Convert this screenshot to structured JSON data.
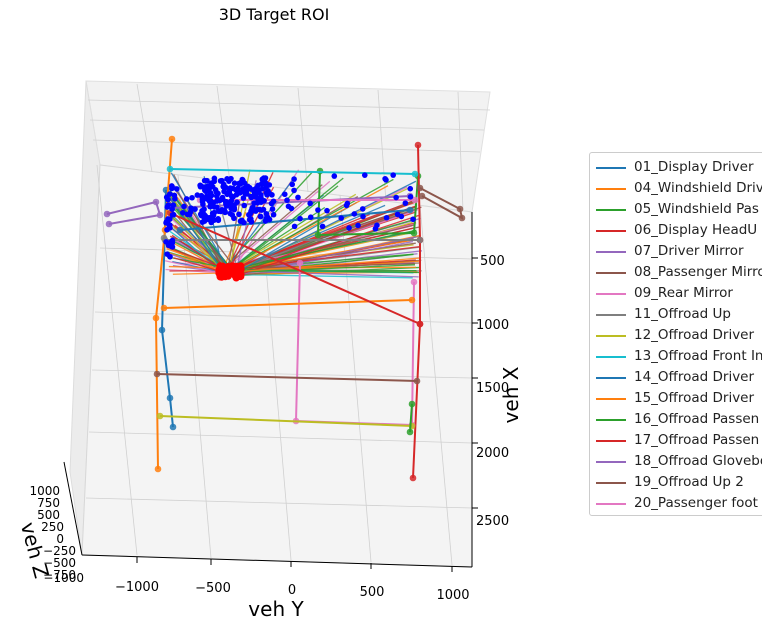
{
  "chart_data": {
    "type": "scatter",
    "projection": "3d",
    "title": "3D Target ROI",
    "xlabel": "veh Y",
    "ylabel": "veh X",
    "zlabel": "veh Z",
    "x_ticks": [
      "−1000",
      "−500",
      "0",
      "500",
      "1000"
    ],
    "y_ticks": [
      "500",
      "1000",
      "1500",
      "2000",
      "2500"
    ],
    "z_ticks": [
      "1000",
      "750",
      "500",
      "250",
      "0",
      "−250",
      "−500",
      "−750",
      "−1000"
    ],
    "legend_position": "right",
    "grid": true,
    "series": [
      {
        "name": "01_Display Driver",
        "color": "#1f77b4"
      },
      {
        "name": "04_Windshield Driv",
        "color": "#ff7f0e"
      },
      {
        "name": "05_Windshield Pas",
        "color": "#2ca02c"
      },
      {
        "name": "06_Display HeadU",
        "color": "#d62728"
      },
      {
        "name": "07_Driver Mirror",
        "color": "#9467bd"
      },
      {
        "name": "08_Passenger Mirro",
        "color": "#8c564b"
      },
      {
        "name": "09_Rear Mirror",
        "color": "#e377c2"
      },
      {
        "name": "11_Offroad Up",
        "color": "#7f7f7f"
      },
      {
        "name": "12_Offroad Driver",
        "color": "#bcbd22"
      },
      {
        "name": "13_Offroad Front In",
        "color": "#17becf"
      },
      {
        "name": "14_Offroad Driver",
        "color": "#1f77b4"
      },
      {
        "name": "15_Offroad Driver",
        "color": "#ff7f0e"
      },
      {
        "name": "16_Offroad Passen",
        "color": "#2ca02c"
      },
      {
        "name": "17_Offroad Passen",
        "color": "#d62728"
      },
      {
        "name": "18_Offroad Glovebo",
        "color": "#9467bd"
      },
      {
        "name": "19_Offroad Up 2",
        "color": "#8c564b"
      },
      {
        "name": "20_Passenger foot",
        "color": "#e377c2"
      }
    ],
    "gaze_origin_color": "#ff0000",
    "gaze_target_color": "#0000ff"
  }
}
